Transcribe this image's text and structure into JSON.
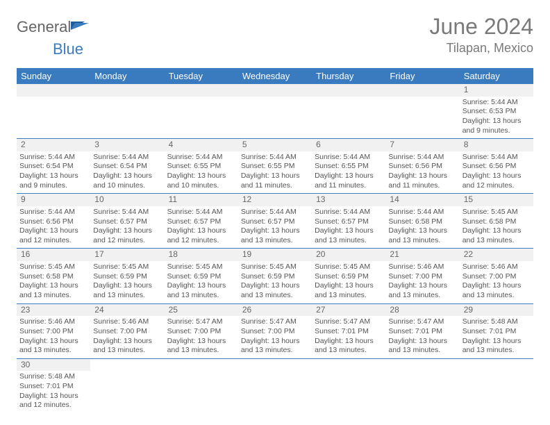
{
  "logo": {
    "part1": "General",
    "part2": "Blue"
  },
  "title": {
    "month": "June 2024",
    "location": "Tilapan, Mexico"
  },
  "colors": {
    "header_bg": "#3a7bbf",
    "row_alt": "#f1f1f1",
    "text": "#555555"
  },
  "weekdays": [
    "Sunday",
    "Monday",
    "Tuesday",
    "Wednesday",
    "Thursday",
    "Friday",
    "Saturday"
  ],
  "weeks": [
    [
      null,
      null,
      null,
      null,
      null,
      null,
      {
        "n": "1",
        "sr": "Sunrise: 5:44 AM",
        "ss": "Sunset: 6:53 PM",
        "dl": "Daylight: 13 hours and 9 minutes."
      }
    ],
    [
      {
        "n": "2",
        "sr": "Sunrise: 5:44 AM",
        "ss": "Sunset: 6:54 PM",
        "dl": "Daylight: 13 hours and 9 minutes."
      },
      {
        "n": "3",
        "sr": "Sunrise: 5:44 AM",
        "ss": "Sunset: 6:54 PM",
        "dl": "Daylight: 13 hours and 10 minutes."
      },
      {
        "n": "4",
        "sr": "Sunrise: 5:44 AM",
        "ss": "Sunset: 6:55 PM",
        "dl": "Daylight: 13 hours and 10 minutes."
      },
      {
        "n": "5",
        "sr": "Sunrise: 5:44 AM",
        "ss": "Sunset: 6:55 PM",
        "dl": "Daylight: 13 hours and 11 minutes."
      },
      {
        "n": "6",
        "sr": "Sunrise: 5:44 AM",
        "ss": "Sunset: 6:55 PM",
        "dl": "Daylight: 13 hours and 11 minutes."
      },
      {
        "n": "7",
        "sr": "Sunrise: 5:44 AM",
        "ss": "Sunset: 6:56 PM",
        "dl": "Daylight: 13 hours and 11 minutes."
      },
      {
        "n": "8",
        "sr": "Sunrise: 5:44 AM",
        "ss": "Sunset: 6:56 PM",
        "dl": "Daylight: 13 hours and 12 minutes."
      }
    ],
    [
      {
        "n": "9",
        "sr": "Sunrise: 5:44 AM",
        "ss": "Sunset: 6:56 PM",
        "dl": "Daylight: 13 hours and 12 minutes."
      },
      {
        "n": "10",
        "sr": "Sunrise: 5:44 AM",
        "ss": "Sunset: 6:57 PM",
        "dl": "Daylight: 13 hours and 12 minutes."
      },
      {
        "n": "11",
        "sr": "Sunrise: 5:44 AM",
        "ss": "Sunset: 6:57 PM",
        "dl": "Daylight: 13 hours and 12 minutes."
      },
      {
        "n": "12",
        "sr": "Sunrise: 5:44 AM",
        "ss": "Sunset: 6:57 PM",
        "dl": "Daylight: 13 hours and 13 minutes."
      },
      {
        "n": "13",
        "sr": "Sunrise: 5:44 AM",
        "ss": "Sunset: 6:57 PM",
        "dl": "Daylight: 13 hours and 13 minutes."
      },
      {
        "n": "14",
        "sr": "Sunrise: 5:44 AM",
        "ss": "Sunset: 6:58 PM",
        "dl": "Daylight: 13 hours and 13 minutes."
      },
      {
        "n": "15",
        "sr": "Sunrise: 5:45 AM",
        "ss": "Sunset: 6:58 PM",
        "dl": "Daylight: 13 hours and 13 minutes."
      }
    ],
    [
      {
        "n": "16",
        "sr": "Sunrise: 5:45 AM",
        "ss": "Sunset: 6:58 PM",
        "dl": "Daylight: 13 hours and 13 minutes."
      },
      {
        "n": "17",
        "sr": "Sunrise: 5:45 AM",
        "ss": "Sunset: 6:59 PM",
        "dl": "Daylight: 13 hours and 13 minutes."
      },
      {
        "n": "18",
        "sr": "Sunrise: 5:45 AM",
        "ss": "Sunset: 6:59 PM",
        "dl": "Daylight: 13 hours and 13 minutes."
      },
      {
        "n": "19",
        "sr": "Sunrise: 5:45 AM",
        "ss": "Sunset: 6:59 PM",
        "dl": "Daylight: 13 hours and 13 minutes."
      },
      {
        "n": "20",
        "sr": "Sunrise: 5:45 AM",
        "ss": "Sunset: 6:59 PM",
        "dl": "Daylight: 13 hours and 13 minutes."
      },
      {
        "n": "21",
        "sr": "Sunrise: 5:46 AM",
        "ss": "Sunset: 7:00 PM",
        "dl": "Daylight: 13 hours and 13 minutes."
      },
      {
        "n": "22",
        "sr": "Sunrise: 5:46 AM",
        "ss": "Sunset: 7:00 PM",
        "dl": "Daylight: 13 hours and 13 minutes."
      }
    ],
    [
      {
        "n": "23",
        "sr": "Sunrise: 5:46 AM",
        "ss": "Sunset: 7:00 PM",
        "dl": "Daylight: 13 hours and 13 minutes."
      },
      {
        "n": "24",
        "sr": "Sunrise: 5:46 AM",
        "ss": "Sunset: 7:00 PM",
        "dl": "Daylight: 13 hours and 13 minutes."
      },
      {
        "n": "25",
        "sr": "Sunrise: 5:47 AM",
        "ss": "Sunset: 7:00 PM",
        "dl": "Daylight: 13 hours and 13 minutes."
      },
      {
        "n": "26",
        "sr": "Sunrise: 5:47 AM",
        "ss": "Sunset: 7:00 PM",
        "dl": "Daylight: 13 hours and 13 minutes."
      },
      {
        "n": "27",
        "sr": "Sunrise: 5:47 AM",
        "ss": "Sunset: 7:01 PM",
        "dl": "Daylight: 13 hours and 13 minutes."
      },
      {
        "n": "28",
        "sr": "Sunrise: 5:47 AM",
        "ss": "Sunset: 7:01 PM",
        "dl": "Daylight: 13 hours and 13 minutes."
      },
      {
        "n": "29",
        "sr": "Sunrise: 5:48 AM",
        "ss": "Sunset: 7:01 PM",
        "dl": "Daylight: 13 hours and 13 minutes."
      }
    ],
    [
      {
        "n": "30",
        "sr": "Sunrise: 5:48 AM",
        "ss": "Sunset: 7:01 PM",
        "dl": "Daylight: 13 hours and 12 minutes."
      },
      null,
      null,
      null,
      null,
      null,
      null
    ]
  ]
}
